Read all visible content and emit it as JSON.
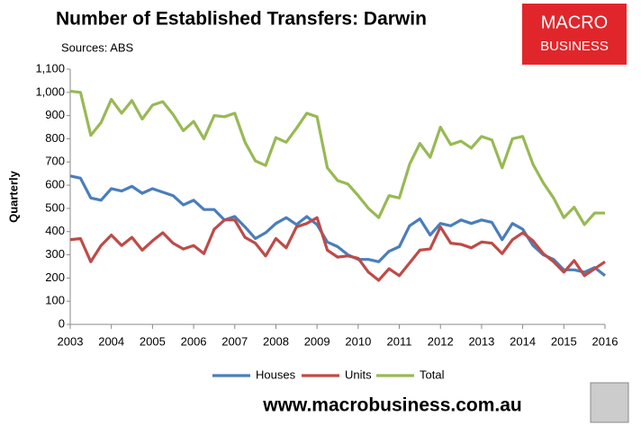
{
  "chart_data": {
    "type": "line",
    "title": "Number of Established Transfers: Darwin",
    "subtitle": "Sources: ABS",
    "logo": {
      "line1": "MACRO",
      "line2": "BUSINESS"
    },
    "footer": "www.macrobusiness.com.au",
    "y_label": "Quarterly",
    "x": [
      2003,
      2003.25,
      2003.5,
      2003.75,
      2004,
      2004.25,
      2004.5,
      2004.75,
      2005,
      2005.25,
      2005.5,
      2005.75,
      2006,
      2006.25,
      2006.5,
      2006.75,
      2007,
      2007.25,
      2007.5,
      2007.75,
      2008,
      2008.25,
      2008.5,
      2008.75,
      2009,
      2009.25,
      2009.5,
      2009.75,
      2010,
      2010.25,
      2010.5,
      2010.75,
      2011,
      2011.25,
      2011.5,
      2011.75,
      2012,
      2012.25,
      2012.5,
      2012.75,
      2013,
      2013.25,
      2013.5,
      2013.75,
      2014,
      2014.25,
      2014.5,
      2014.75,
      2015,
      2015.25,
      2015.5,
      2015.75,
      2016
    ],
    "series": [
      {
        "name": "Houses",
        "color": "#4a7ebb",
        "values": [
          640,
          630,
          545,
          535,
          585,
          575,
          595,
          565,
          585,
          570,
          555,
          515,
          535,
          495,
          495,
          450,
          465,
          420,
          370,
          395,
          435,
          460,
          430,
          465,
          430,
          355,
          335,
          300,
          280,
          280,
          270,
          315,
          335,
          425,
          455,
          385,
          435,
          425,
          450,
          435,
          450,
          440,
          365,
          435,
          410,
          340,
          300,
          280,
          235,
          235,
          225,
          245,
          210
        ]
      },
      {
        "name": "Units",
        "color": "#be4b48",
        "values": [
          365,
          370,
          270,
          340,
          385,
          340,
          375,
          320,
          360,
          395,
          350,
          325,
          340,
          305,
          410,
          450,
          450,
          375,
          350,
          295,
          370,
          330,
          420,
          435,
          460,
          320,
          290,
          295,
          285,
          225,
          190,
          240,
          210,
          265,
          320,
          325,
          420,
          350,
          345,
          330,
          355,
          350,
          305,
          365,
          395,
          360,
          305,
          270,
          225,
          275,
          210,
          240,
          270
        ]
      },
      {
        "name": "Total",
        "color": "#98b954",
        "values": [
          1005,
          1000,
          815,
          870,
          970,
          910,
          965,
          885,
          945,
          960,
          905,
          835,
          875,
          800,
          900,
          895,
          910,
          785,
          705,
          685,
          805,
          785,
          845,
          910,
          895,
          675,
          620,
          605,
          555,
          500,
          460,
          555,
          545,
          690,
          780,
          720,
          850,
          775,
          790,
          760,
          810,
          795,
          675,
          800,
          810,
          690,
          610,
          545,
          460,
          505,
          430,
          480,
          480
        ]
      }
    ],
    "xlim": [
      2003,
      2016
    ],
    "xticks": [
      2003,
      2004,
      2005,
      2006,
      2007,
      2008,
      2009,
      2010,
      2011,
      2012,
      2013,
      2014,
      2015,
      2016
    ],
    "ylim": [
      0,
      1100
    ],
    "yticks": [
      0,
      100,
      200,
      300,
      400,
      500,
      600,
      700,
      800,
      900,
      {
        "value": 1000,
        "label": "1,000"
      },
      {
        "value": 1100,
        "label": "1,100"
      }
    ],
    "grid": false,
    "legend": "bottom"
  }
}
